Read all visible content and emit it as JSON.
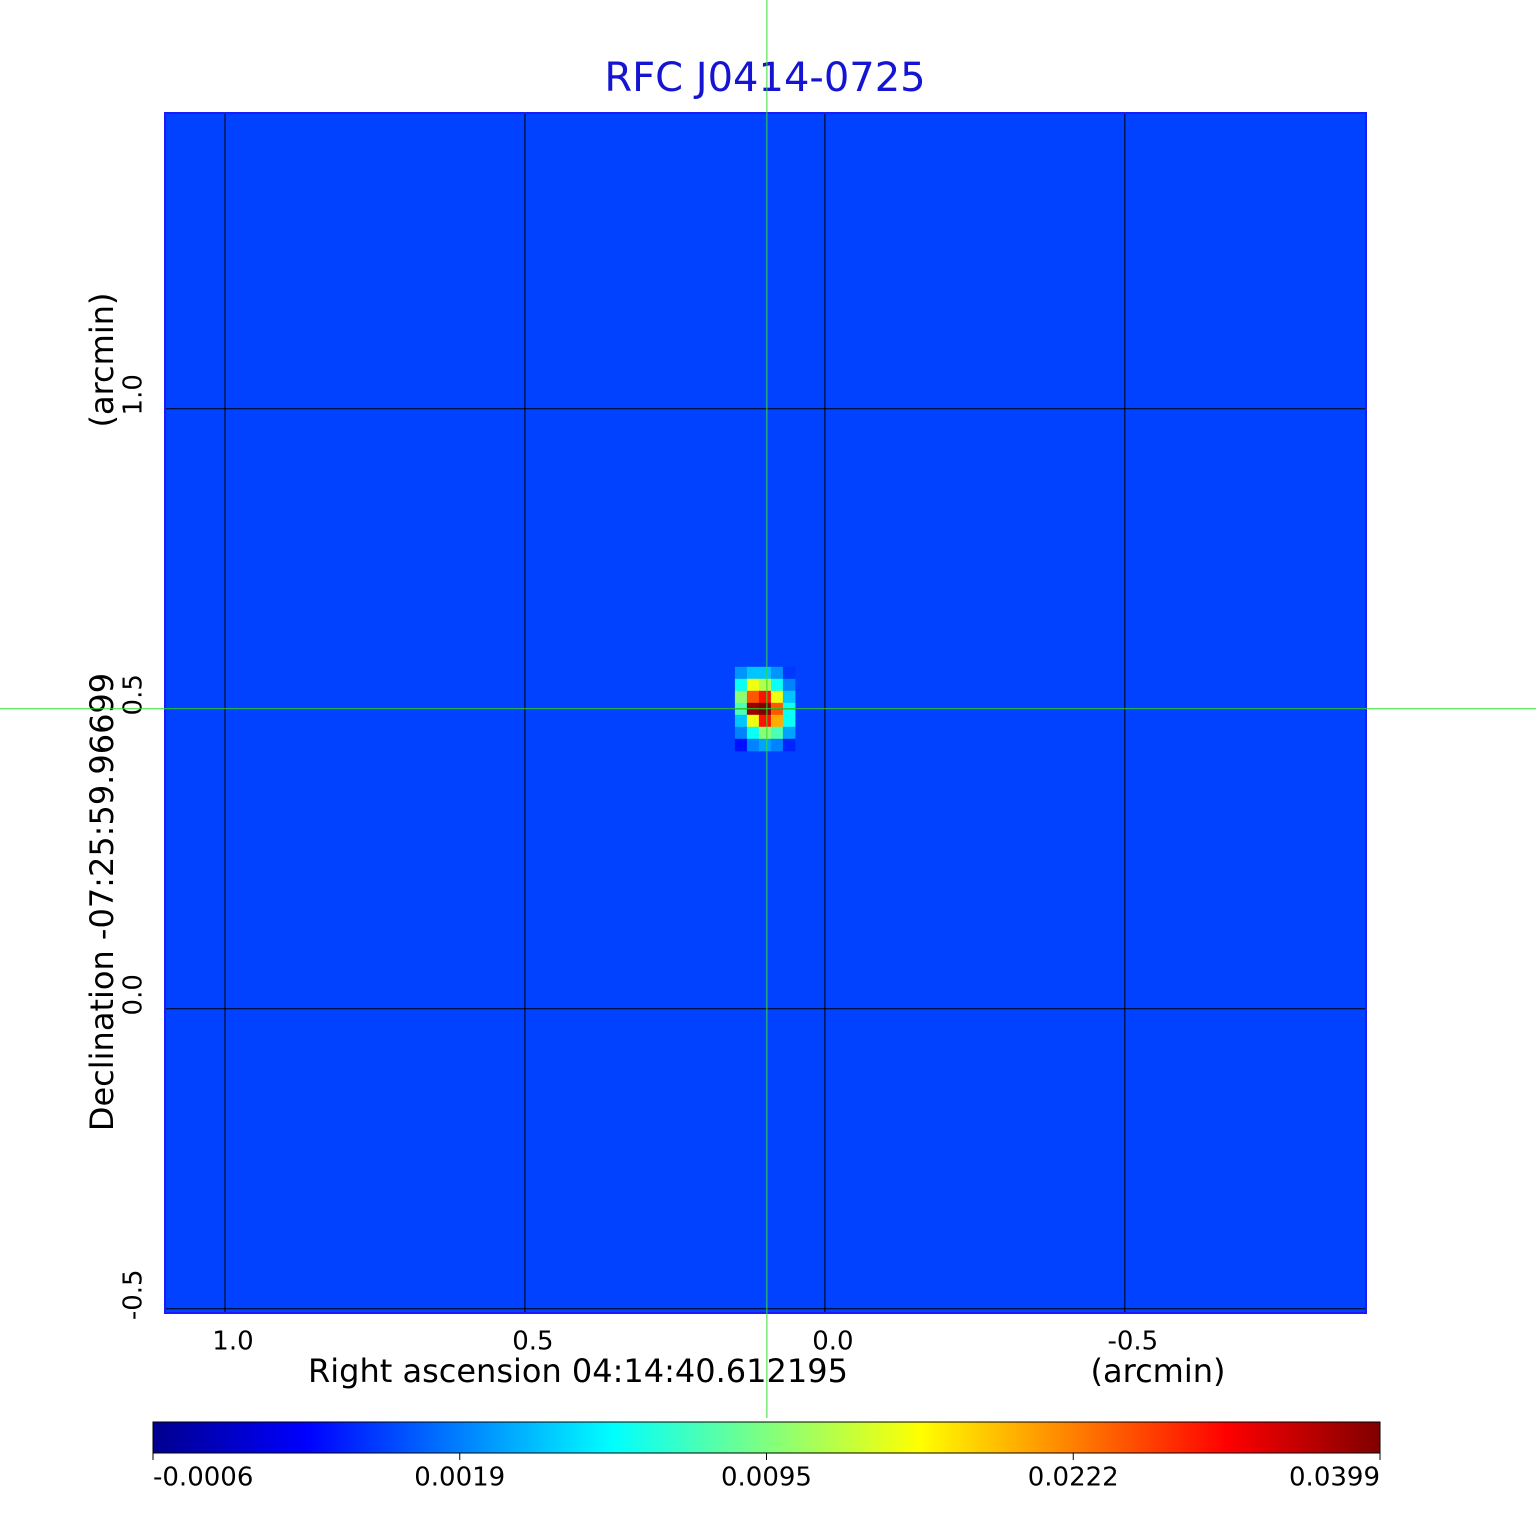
{
  "chart_data": {
    "type": "heatmap",
    "title": "RFC J0414-0725",
    "xlabel": "Right ascension  04:14:40.612195",
    "xunit": "(arcmin)",
    "ylabel": "Declination  -07:25:59.96699",
    "yunit": "(arcmin)",
    "xlim": [
      1.1,
      -0.902
    ],
    "ylim": [
      -0.507,
      1.493
    ],
    "xticks": [
      {
        "value": 1,
        "label": "1.0"
      },
      0.5,
      {
        "value": 0,
        "label": "0.0"
      },
      -0.5
    ],
    "yticks": [
      -0.5,
      {
        "value": 0,
        "label": "0.0"
      },
      0.5,
      {
        "value": 1,
        "label": "1.0"
      }
    ],
    "grid": true,
    "background": 0.0013,
    "source": {
      "x": [
        0.14,
        0.12,
        0.1,
        0.08,
        0.06
      ],
      "y": [
        0.56,
        0.54,
        0.52,
        0.5,
        0.48,
        0.46,
        0.44
      ],
      "cell": 0.02,
      "values": [
        [
          0.0025,
          0.004,
          0.004,
          0.0025,
          0.0012
        ],
        [
          0.006,
          0.015,
          0.012,
          0.006,
          0.002
        ],
        [
          0.01,
          0.025,
          0.03,
          0.015,
          0.004
        ],
        [
          0.008,
          0.038,
          0.0399,
          0.025,
          0.006
        ],
        [
          0.004,
          0.015,
          0.03,
          0.02,
          0.006
        ],
        [
          0.002,
          0.006,
          0.01,
          0.008,
          0.003
        ],
        [
          0.0008,
          0.002,
          0.003,
          0.002,
          0.001
        ]
      ]
    },
    "crosshair": {
      "x": 0.0967,
      "y": 0.5,
      "color": "#33dd33"
    },
    "colorbar": {
      "ticks": [
        -0.0006,
        0.0019,
        0.0095,
        0.0222,
        0.0399
      ]
    }
  }
}
